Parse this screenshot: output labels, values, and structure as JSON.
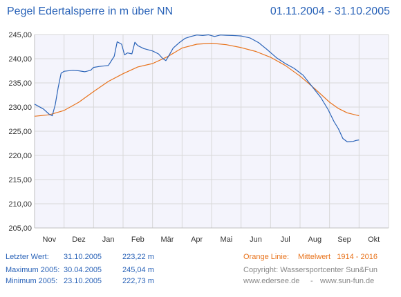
{
  "header": {
    "title": "Pegel Edertalsperre in m über NN",
    "date_range": "01.11.2004 - 31.10.2005"
  },
  "stats": [
    {
      "label": "Letzter Wert:",
      "date": "31.10.2005",
      "value": "223,22 m"
    },
    {
      "label": "Maximum 2005:",
      "date": "30.04.2005",
      "value": "245,04 m"
    },
    {
      "label": "Minimum  2005:",
      "date": "23.10.2005",
      "value": "222,73 m"
    }
  ],
  "legend": {
    "orange_label": "Orange Linie:",
    "orange_desc": "Mittelwert   1914 - 2016"
  },
  "credits": {
    "copyright": "Copyright: Wassersportcenter Sun&Fun",
    "site1": "www.edersee.de",
    "sep": "-",
    "site2": "www.sun-fun.de"
  },
  "colors": {
    "blue": "#2a63b8",
    "orange": "#e8731c",
    "plot_bg": "#f4f4fc",
    "grid": "#d8d8d8",
    "axis_text": "#333333"
  },
  "chart_data": {
    "type": "line",
    "title": "Pegel Edertalsperre in m über NN",
    "xlabel": "",
    "ylabel": "",
    "xlim": [
      0,
      12
    ],
    "ylim": [
      205,
      245
    ],
    "ytick_values": [
      205,
      210,
      215,
      220,
      225,
      230,
      235,
      240,
      245
    ],
    "ytick_labels": [
      "205,00",
      "210,00",
      "215,00",
      "220,00",
      "225,00",
      "230,00",
      "235,00",
      "240,00",
      "245,00"
    ],
    "categories": [
      "Nov",
      "Dez",
      "Jan",
      "Feb",
      "Mär",
      "Apr",
      "Mai",
      "Jun",
      "Jul",
      "Aug",
      "Sep",
      "Okt"
    ],
    "grid": true,
    "series": [
      {
        "color": "#2a63b8",
        "points": [
          [
            0,
            230.6
          ],
          [
            0.3,
            229.6
          ],
          [
            0.5,
            228.5
          ],
          [
            0.6,
            228.2
          ],
          [
            0.7,
            230.5
          ],
          [
            0.8,
            234
          ],
          [
            0.9,
            237
          ],
          [
            1.0,
            237.4
          ],
          [
            1.3,
            237.6
          ],
          [
            1.5,
            237.5
          ],
          [
            1.7,
            237.3
          ],
          [
            1.9,
            237.6
          ],
          [
            2.0,
            238.2
          ],
          [
            2.2,
            238.4
          ],
          [
            2.5,
            238.6
          ],
          [
            2.7,
            240.5
          ],
          [
            2.8,
            243.5
          ],
          [
            2.95,
            243.0
          ],
          [
            3.05,
            240.8
          ],
          [
            3.15,
            241.2
          ],
          [
            3.3,
            241.0
          ],
          [
            3.4,
            243.4
          ],
          [
            3.5,
            242.7
          ],
          [
            3.6,
            242.4
          ],
          [
            3.7,
            242.1
          ],
          [
            4.0,
            241.6
          ],
          [
            4.2,
            241.0
          ],
          [
            4.35,
            240.0
          ],
          [
            4.45,
            239.6
          ],
          [
            4.55,
            240.6
          ],
          [
            4.7,
            242.2
          ],
          [
            4.9,
            243.3
          ],
          [
            5.1,
            244.2
          ],
          [
            5.3,
            244.6
          ],
          [
            5.5,
            244.9
          ],
          [
            5.7,
            244.8
          ],
          [
            5.9,
            244.95
          ],
          [
            6.1,
            244.6
          ],
          [
            6.3,
            244.9
          ],
          [
            6.5,
            244.85
          ],
          [
            6.7,
            244.8
          ],
          [
            6.9,
            244.75
          ],
          [
            7.0,
            244.7
          ],
          [
            7.3,
            244.3
          ],
          [
            7.6,
            243.3
          ],
          [
            7.9,
            241.8
          ],
          [
            8.2,
            240.2
          ],
          [
            8.5,
            239.0
          ],
          [
            8.8,
            238.0
          ],
          [
            9.1,
            236.6
          ],
          [
            9.4,
            234.3
          ],
          [
            9.7,
            232.0
          ],
          [
            9.95,
            229.5
          ],
          [
            10.15,
            227.0
          ],
          [
            10.3,
            225.5
          ],
          [
            10.45,
            223.5
          ],
          [
            10.6,
            222.8
          ],
          [
            10.8,
            222.9
          ],
          [
            10.9,
            223.1
          ],
          [
            11.0,
            223.2
          ]
        ]
      },
      {
        "color": "#e8731c",
        "points": [
          [
            0,
            228.1
          ],
          [
            0.5,
            228.4
          ],
          [
            1.0,
            229.3
          ],
          [
            1.5,
            231.0
          ],
          [
            2.0,
            233.2
          ],
          [
            2.5,
            235.3
          ],
          [
            3.0,
            236.9
          ],
          [
            3.5,
            238.3
          ],
          [
            4.0,
            239.0
          ],
          [
            4.5,
            240.4
          ],
          [
            5.0,
            242.2
          ],
          [
            5.5,
            243.0
          ],
          [
            6.0,
            243.2
          ],
          [
            6.5,
            242.9
          ],
          [
            7.0,
            242.3
          ],
          [
            7.5,
            241.5
          ],
          [
            8.0,
            240.3
          ],
          [
            8.5,
            238.6
          ],
          [
            9.0,
            236.4
          ],
          [
            9.5,
            233.8
          ],
          [
            10.0,
            231.0
          ],
          [
            10.3,
            229.7
          ],
          [
            10.6,
            228.8
          ],
          [
            11.0,
            228.2
          ]
        ]
      }
    ]
  }
}
